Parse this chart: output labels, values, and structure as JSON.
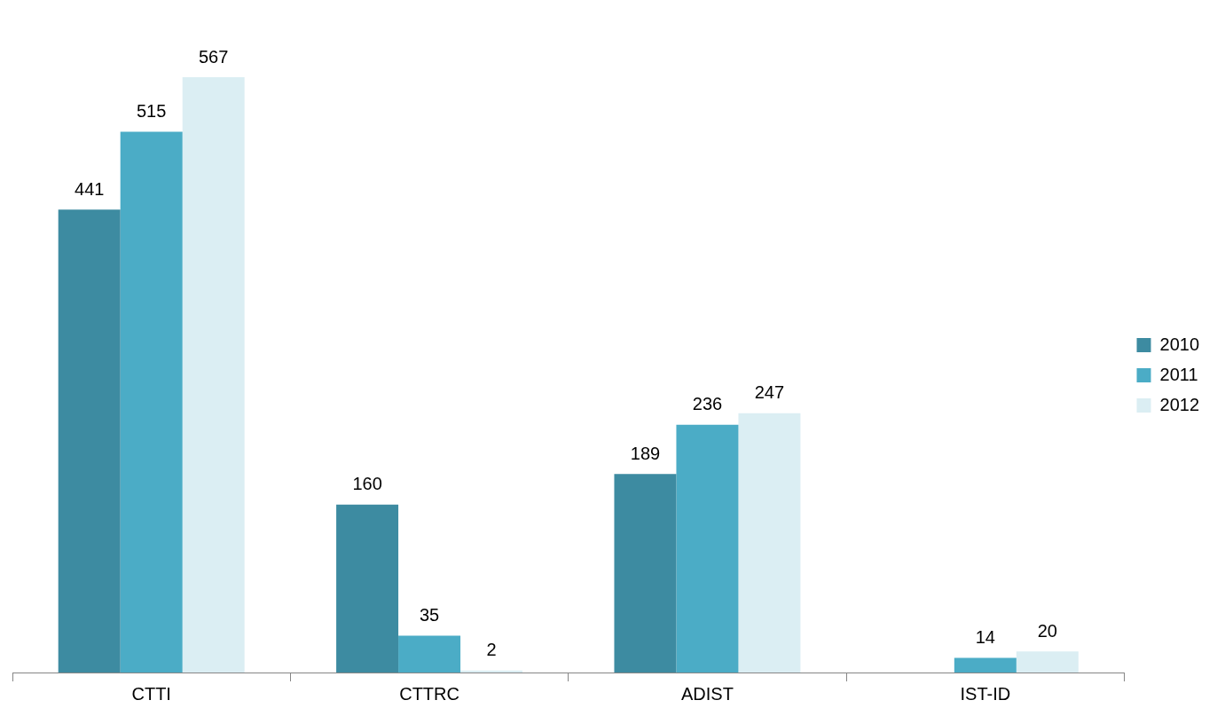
{
  "chart_data": {
    "type": "bar",
    "categories": [
      "CTTI",
      "CTTRC",
      "ADIST",
      "IST-ID"
    ],
    "series": [
      {
        "name": "2010",
        "color": "#3d8ba1",
        "values": [
          441,
          160,
          189,
          null
        ]
      },
      {
        "name": "2011",
        "color": "#4bacc6",
        "values": [
          515,
          35,
          236,
          14
        ]
      },
      {
        "name": "2012",
        "color": "#dbeef3",
        "values": [
          567,
          2,
          247,
          20
        ]
      }
    ],
    "data_labels": true,
    "legend": "right",
    "grid": false,
    "tick_labels": "x"
  }
}
